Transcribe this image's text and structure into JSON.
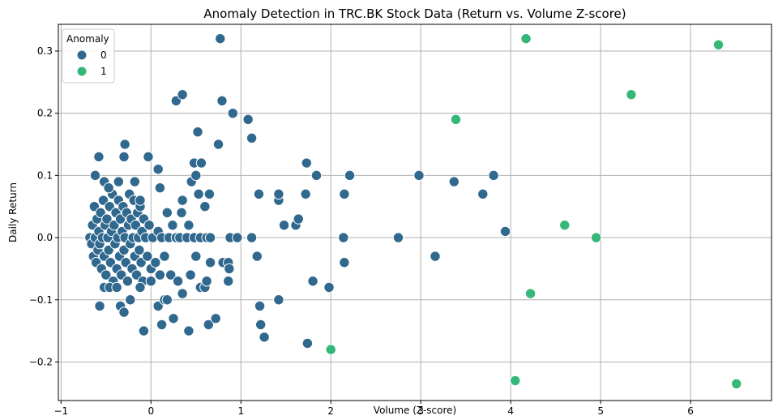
{
  "chart_data": {
    "type": "scatter",
    "title": "Anomaly Detection in TRC.BK Stock Data (Return vs. Volume Z-score)",
    "xlabel": "Volume (Z-score)",
    "ylabel": "Daily Return",
    "xlim": [
      -1.03,
      6.9
    ],
    "ylim": [
      -0.262,
      0.343
    ],
    "xticks": [
      -1,
      0,
      1,
      2,
      3,
      4,
      5,
      6
    ],
    "xtick_labels": [
      "−1",
      "0",
      "1",
      "2",
      "3",
      "4",
      "5",
      "6"
    ],
    "yticks": [
      -0.2,
      -0.1,
      0.0,
      0.1,
      0.2,
      0.3
    ],
    "ytick_labels": [
      "−0.2",
      "−0.1",
      "0.0",
      "0.1",
      "0.2",
      "0.3"
    ],
    "grid": true,
    "legend": {
      "title": "Anomaly",
      "position": "top-left",
      "entries": [
        "0",
        "1"
      ]
    },
    "colors": {
      "0": "#31688e",
      "1": "#35b779"
    },
    "series": [
      {
        "name": "0",
        "points": [
          [
            -0.68,
            0.0
          ],
          [
            -0.66,
            -0.01
          ],
          [
            -0.65,
            0.02
          ],
          [
            -0.64,
            -0.03
          ],
          [
            -0.63,
            0.05
          ],
          [
            -0.62,
            0.0
          ],
          [
            -0.61,
            -0.04
          ],
          [
            -0.6,
            0.03
          ],
          [
            -0.59,
            -0.02
          ],
          [
            -0.58,
            0.01
          ],
          [
            -0.57,
            -0.01
          ],
          [
            -0.56,
            0.04
          ],
          [
            -0.55,
            -0.05
          ],
          [
            -0.54,
            0.0
          ],
          [
            -0.53,
            0.06
          ],
          [
            -0.52,
            -0.03
          ],
          [
            -0.51,
            0.02
          ],
          [
            -0.5,
            -0.06
          ],
          [
            -0.49,
            0.03
          ],
          [
            -0.48,
            0.0
          ],
          [
            -0.47,
            -0.02
          ],
          [
            -0.46,
            0.05
          ],
          [
            -0.45,
            -0.04
          ],
          [
            -0.44,
            0.01
          ],
          [
            -0.43,
            0.07
          ],
          [
            -0.42,
            -0.07
          ],
          [
            -0.41,
            0.02
          ],
          [
            -0.4,
            -0.01
          ],
          [
            -0.39,
            0.04
          ],
          [
            -0.38,
            -0.05
          ],
          [
            -0.37,
            0.0
          ],
          [
            -0.36,
            0.06
          ],
          [
            -0.35,
            -0.03
          ],
          [
            -0.34,
            0.03
          ],
          [
            -0.33,
            -0.06
          ],
          [
            -0.32,
            0.01
          ],
          [
            -0.31,
            0.05
          ],
          [
            -0.3,
            -0.02
          ],
          [
            -0.29,
            0.0
          ],
          [
            -0.28,
            -0.04
          ],
          [
            -0.27,
            0.04
          ],
          [
            -0.26,
            -0.07
          ],
          [
            -0.25,
            0.02
          ],
          [
            -0.24,
            0.07
          ],
          [
            -0.23,
            -0.01
          ],
          [
            -0.22,
            0.03
          ],
          [
            -0.21,
            -0.05
          ],
          [
            -0.2,
            0.0
          ],
          [
            -0.19,
            0.06
          ],
          [
            -0.18,
            -0.03
          ],
          [
            -0.17,
            0.02
          ],
          [
            -0.16,
            -0.06
          ],
          [
            -0.15,
            0.04
          ],
          [
            -0.14,
            0.0
          ],
          [
            -0.13,
            -0.02
          ],
          [
            -0.12,
            0.05
          ],
          [
            -0.11,
            -0.04
          ],
          [
            -0.1,
            0.01
          ],
          [
            -0.09,
            -0.07
          ],
          [
            -0.08,
            0.03
          ],
          [
            -0.06,
            0.0
          ],
          [
            -0.04,
            -0.03
          ],
          [
            -0.02,
            0.02
          ],
          [
            0.0,
            -0.05
          ],
          [
            0.02,
            0.0
          ],
          [
            0.05,
            -0.04
          ],
          [
            0.08,
            0.01
          ],
          [
            0.1,
            -0.06
          ],
          [
            0.12,
            0.0
          ],
          [
            0.15,
            -0.03
          ],
          [
            -0.62,
            0.1
          ],
          [
            -0.58,
            0.13
          ],
          [
            -0.52,
            0.09
          ],
          [
            -0.47,
            0.08
          ],
          [
            -0.36,
            0.09
          ],
          [
            -0.3,
            0.13
          ],
          [
            -0.29,
            0.15
          ],
          [
            -0.18,
            0.09
          ],
          [
            -0.12,
            0.06
          ],
          [
            -0.03,
            0.13
          ],
          [
            0.08,
            0.11
          ],
          [
            0.1,
            0.08
          ],
          [
            -0.57,
            -0.11
          ],
          [
            -0.52,
            -0.08
          ],
          [
            -0.46,
            -0.08
          ],
          [
            -0.38,
            -0.08
          ],
          [
            -0.34,
            -0.11
          ],
          [
            -0.3,
            -0.12
          ],
          [
            -0.23,
            -0.1
          ],
          [
            -0.12,
            -0.08
          ],
          [
            -0.08,
            -0.15
          ],
          [
            0.0,
            -0.07
          ],
          [
            0.08,
            -0.11
          ],
          [
            0.12,
            -0.14
          ],
          [
            0.15,
            -0.1
          ],
          [
            0.18,
            -0.1
          ],
          [
            0.25,
            -0.13
          ],
          [
            0.22,
            -0.06
          ],
          [
            0.3,
            -0.07
          ],
          [
            0.35,
            -0.09
          ],
          [
            0.42,
            -0.15
          ],
          [
            0.44,
            -0.06
          ],
          [
            0.5,
            -0.03
          ],
          [
            0.55,
            -0.08
          ],
          [
            0.6,
            -0.08
          ],
          [
            0.62,
            -0.07
          ],
          [
            0.64,
            -0.14
          ],
          [
            0.66,
            -0.04
          ],
          [
            0.72,
            -0.13
          ],
          [
            0.8,
            -0.04
          ],
          [
            0.86,
            -0.04
          ],
          [
            0.86,
            -0.07
          ],
          [
            0.87,
            -0.05
          ],
          [
            0.18,
            0.04
          ],
          [
            0.24,
            0.02
          ],
          [
            0.34,
            0.04
          ],
          [
            0.35,
            0.06
          ],
          [
            0.42,
            0.02
          ],
          [
            0.45,
            0.09
          ],
          [
            0.48,
            0.12
          ],
          [
            0.5,
            0.1
          ],
          [
            0.52,
            0.17
          ],
          [
            0.53,
            0.07
          ],
          [
            0.56,
            0.12
          ],
          [
            0.6,
            0.05
          ],
          [
            0.64,
            0.07
          ],
          [
            0.65,
            0.07
          ],
          [
            0.75,
            0.15
          ],
          [
            0.79,
            0.22
          ],
          [
            0.91,
            0.2
          ],
          [
            0.28,
            0.22
          ],
          [
            0.35,
            0.23
          ],
          [
            0.77,
            0.32
          ],
          [
            0.2,
            0.0
          ],
          [
            0.28,
            0.0
          ],
          [
            0.32,
            0.0
          ],
          [
            0.4,
            0.0
          ],
          [
            0.48,
            0.0
          ],
          [
            0.55,
            0.0
          ],
          [
            0.62,
            0.0
          ],
          [
            0.66,
            0.0
          ],
          [
            0.88,
            0.0
          ],
          [
            0.96,
            0.0
          ],
          [
            1.12,
            0.0
          ],
          [
            1.08,
            0.19
          ],
          [
            1.12,
            0.16
          ],
          [
            1.18,
            -0.03
          ],
          [
            1.2,
            0.07
          ],
          [
            1.21,
            -0.11
          ],
          [
            1.22,
            -0.14
          ],
          [
            1.26,
            -0.16
          ],
          [
            1.42,
            0.06
          ],
          [
            1.42,
            0.07
          ],
          [
            1.42,
            -0.1
          ],
          [
            1.48,
            0.02
          ],
          [
            1.61,
            0.02
          ],
          [
            1.64,
            0.03
          ],
          [
            1.72,
            0.07
          ],
          [
            1.73,
            0.12
          ],
          [
            1.74,
            -0.17
          ],
          [
            1.8,
            -0.07
          ],
          [
            1.84,
            0.1
          ],
          [
            1.98,
            -0.08
          ],
          [
            2.14,
            0.0
          ],
          [
            2.15,
            0.07
          ],
          [
            2.15,
            -0.04
          ],
          [
            2.21,
            0.1
          ],
          [
            2.75,
            0.0
          ],
          [
            2.98,
            0.1
          ],
          [
            3.16,
            -0.03
          ],
          [
            3.37,
            0.09
          ],
          [
            3.69,
            0.07
          ],
          [
            3.81,
            0.1
          ],
          [
            3.94,
            0.01
          ]
        ]
      },
      {
        "name": "1",
        "points": [
          [
            2.0,
            -0.18
          ],
          [
            3.39,
            0.19
          ],
          [
            4.05,
            -0.23
          ],
          [
            4.17,
            0.32
          ],
          [
            4.22,
            -0.09
          ],
          [
            4.6,
            0.02
          ],
          [
            4.95,
            0.0
          ],
          [
            5.34,
            0.23
          ],
          [
            6.31,
            0.31
          ],
          [
            6.51,
            -0.235
          ]
        ]
      }
    ]
  }
}
